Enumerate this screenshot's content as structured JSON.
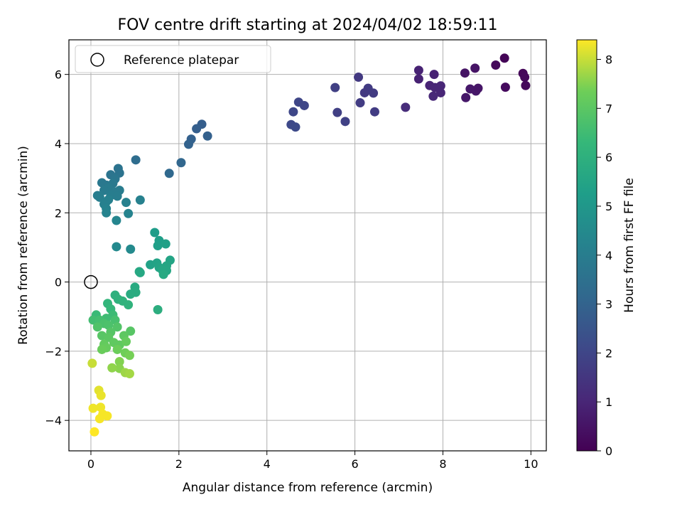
{
  "chart_data": {
    "type": "scatter",
    "title": "FOV centre drift starting at 2024/04/02 18:59:11",
    "xlabel": "Angular distance from reference (arcmin)",
    "ylabel": "Rotation from reference (arcmin)",
    "xlim": [
      -0.5,
      10.35
    ],
    "ylim": [
      -4.88,
      7.0
    ],
    "xticks": [
      0,
      2,
      4,
      6,
      8,
      10
    ],
    "yticks": [
      -4,
      -2,
      0,
      2,
      4,
      6
    ],
    "grid": true,
    "legend": {
      "placement": "top-left",
      "entries": [
        "Reference platepar"
      ]
    },
    "reference_point": {
      "x": 0,
      "y": 0
    },
    "colorbar": {
      "label": "Hours from first FF file",
      "range": [
        0,
        8.4
      ],
      "ticks": [
        0,
        1,
        2,
        3,
        4,
        5,
        6,
        7,
        8
      ],
      "colormap": "viridis"
    },
    "points": [
      [
        9.4,
        6.47,
        0.1
      ],
      [
        9.2,
        6.27,
        0.2
      ],
      [
        9.82,
        6.03,
        0.15
      ],
      [
        9.86,
        5.92,
        0.2
      ],
      [
        9.88,
        5.68,
        0.2
      ],
      [
        9.42,
        5.63,
        0.25
      ],
      [
        8.73,
        6.18,
        0.5
      ],
      [
        8.5,
        6.04,
        0.5
      ],
      [
        8.62,
        5.58,
        0.6
      ],
      [
        8.75,
        5.52,
        0.6
      ],
      [
        8.8,
        5.6,
        0.55
      ],
      [
        8.52,
        5.33,
        0.6
      ],
      [
        7.45,
        6.12,
        0.9
      ],
      [
        7.8,
        6.0,
        0.9
      ],
      [
        7.45,
        5.87,
        0.9
      ],
      [
        7.7,
        5.68,
        0.95
      ],
      [
        7.82,
        5.62,
        1.0
      ],
      [
        7.95,
        5.67,
        1.0
      ],
      [
        7.95,
        5.47,
        1.0
      ],
      [
        7.78,
        5.37,
        1.05
      ],
      [
        7.15,
        5.05,
        1.2
      ],
      [
        6.08,
        5.92,
        1.6
      ],
      [
        6.3,
        5.6,
        1.65
      ],
      [
        6.22,
        5.47,
        1.6
      ],
      [
        6.42,
        5.46,
        1.65
      ],
      [
        6.12,
        5.18,
        1.7
      ],
      [
        6.45,
        4.92,
        1.7
      ],
      [
        5.55,
        5.62,
        1.8
      ],
      [
        5.6,
        4.9,
        1.8
      ],
      [
        5.78,
        4.64,
        1.85
      ],
      [
        4.72,
        5.2,
        2.0
      ],
      [
        4.85,
        5.1,
        2.0
      ],
      [
        4.6,
        4.92,
        2.05
      ],
      [
        4.55,
        4.55,
        2.1
      ],
      [
        4.65,
        4.48,
        2.15
      ],
      [
        2.52,
        4.56,
        2.8
      ],
      [
        2.4,
        4.43,
        2.85
      ],
      [
        2.28,
        4.13,
        2.9
      ],
      [
        2.65,
        4.22,
        2.9
      ],
      [
        2.22,
        3.98,
        2.95
      ],
      [
        2.05,
        3.45,
        3.1
      ],
      [
        1.78,
        3.14,
        3.2
      ],
      [
        1.02,
        3.53,
        3.35
      ],
      [
        0.62,
        3.28,
        3.6
      ],
      [
        0.65,
        3.15,
        3.6
      ],
      [
        0.45,
        3.1,
        3.65
      ],
      [
        0.55,
        2.98,
        3.7
      ],
      [
        0.25,
        2.87,
        3.8
      ],
      [
        0.35,
        2.8,
        3.8
      ],
      [
        0.5,
        2.85,
        3.85
      ],
      [
        0.4,
        2.72,
        3.9
      ],
      [
        0.3,
        2.65,
        3.9
      ],
      [
        0.65,
        2.65,
        3.95
      ],
      [
        0.55,
        2.6,
        3.95
      ],
      [
        0.15,
        2.5,
        4.0
      ],
      [
        0.45,
        2.5,
        4.0
      ],
      [
        0.6,
        2.48,
        4.0
      ],
      [
        0.2,
        2.45,
        4.05
      ],
      [
        0.35,
        2.32,
        4.1
      ],
      [
        0.4,
        2.38,
        4.1
      ],
      [
        0.3,
        2.25,
        4.1
      ],
      [
        0.8,
        2.3,
        4.15
      ],
      [
        1.12,
        2.37,
        4.15
      ],
      [
        0.35,
        2.12,
        4.2
      ],
      [
        0.35,
        2.0,
        4.25
      ],
      [
        0.85,
        1.98,
        4.25
      ],
      [
        0.58,
        1.78,
        4.3
      ],
      [
        0.58,
        1.02,
        4.45
      ],
      [
        0.9,
        0.95,
        4.5
      ],
      [
        1.45,
        1.43,
        5.2
      ],
      [
        1.55,
        1.2,
        5.3
      ],
      [
        1.52,
        1.05,
        5.3
      ],
      [
        1.7,
        1.1,
        5.35
      ],
      [
        1.35,
        0.5,
        5.4
      ],
      [
        1.5,
        0.55,
        5.45
      ],
      [
        1.8,
        0.63,
        5.5
      ],
      [
        1.55,
        0.42,
        5.5
      ],
      [
        1.72,
        0.47,
        5.55
      ],
      [
        1.62,
        0.35,
        5.6
      ],
      [
        1.72,
        0.33,
        5.6
      ],
      [
        1.1,
        0.3,
        5.65
      ],
      [
        1.12,
        0.27,
        5.65
      ],
      [
        1.65,
        0.22,
        5.7
      ],
      [
        1.0,
        -0.15,
        5.75
      ],
      [
        1.02,
        -0.3,
        5.8
      ],
      [
        0.9,
        -0.35,
        5.8
      ],
      [
        1.52,
        -0.8,
        5.9
      ],
      [
        0.55,
        -0.38,
        6.0
      ],
      [
        0.62,
        -0.5,
        6.05
      ],
      [
        0.72,
        -0.55,
        6.1
      ],
      [
        0.85,
        -0.66,
        6.1
      ],
      [
        0.38,
        -0.62,
        6.2
      ],
      [
        0.45,
        -0.78,
        6.3
      ],
      [
        0.12,
        -0.95,
        6.4
      ],
      [
        0.5,
        -0.95,
        6.45
      ],
      [
        0.35,
        -1.05,
        6.5
      ],
      [
        0.05,
        -1.1,
        6.55
      ],
      [
        0.2,
        -1.1,
        6.6
      ],
      [
        0.55,
        -1.1,
        6.65
      ],
      [
        0.3,
        -1.2,
        6.7
      ],
      [
        0.4,
        -1.25,
        6.75
      ],
      [
        0.15,
        -1.3,
        6.8
      ],
      [
        0.6,
        -1.3,
        6.85
      ],
      [
        0.45,
        -1.45,
        6.9
      ],
      [
        0.9,
        -1.42,
        6.95
      ],
      [
        0.25,
        -1.55,
        6.95
      ],
      [
        0.4,
        -1.6,
        7.0
      ],
      [
        0.75,
        -1.55,
        7.05
      ],
      [
        0.52,
        -1.75,
        7.1
      ],
      [
        0.65,
        -1.82,
        7.1
      ],
      [
        0.3,
        -1.8,
        7.15
      ],
      [
        0.8,
        -1.72,
        7.2
      ],
      [
        0.35,
        -1.9,
        7.2
      ],
      [
        0.25,
        -1.95,
        7.25
      ],
      [
        0.6,
        -1.95,
        7.3
      ],
      [
        0.78,
        -2.05,
        7.35
      ],
      [
        0.88,
        -2.12,
        7.4
      ],
      [
        0.65,
        -2.3,
        7.5
      ],
      [
        0.65,
        -2.5,
        7.55
      ],
      [
        0.48,
        -2.48,
        7.6
      ],
      [
        0.78,
        -2.62,
        7.7
      ],
      [
        0.88,
        -2.65,
        7.75
      ],
      [
        0.03,
        -2.35,
        8.0
      ],
      [
        0.18,
        -3.13,
        8.2
      ],
      [
        0.23,
        -3.28,
        8.25
      ],
      [
        0.22,
        -3.62,
        8.3
      ],
      [
        0.05,
        -3.65,
        8.3
      ],
      [
        0.27,
        -3.82,
        8.35
      ],
      [
        0.37,
        -3.87,
        8.35
      ],
      [
        0.2,
        -3.95,
        8.35
      ],
      [
        0.08,
        -4.33,
        8.4
      ]
    ]
  }
}
